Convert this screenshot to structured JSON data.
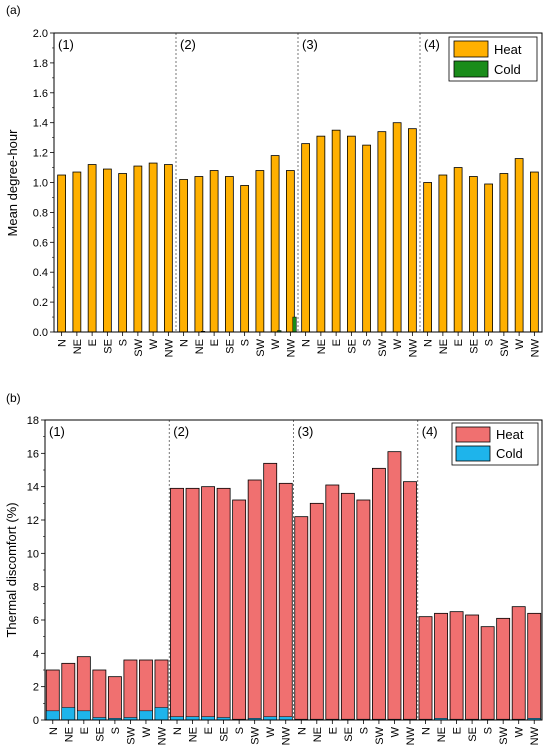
{
  "colors": {
    "heat_a": "#FFB000",
    "cold_a": "#1A8C1A",
    "heat_b": "#F07070",
    "cold_b": "#1EB4EB"
  },
  "chart_data": [
    {
      "type": "bar",
      "panel_label": "(a)",
      "ylabel": "Mean degree-hour",
      "ylim": [
        0,
        2.0
      ],
      "yticks": [
        0.0,
        0.2,
        0.4,
        0.6,
        0.8,
        1.0,
        1.2,
        1.4,
        1.6,
        1.8,
        2.0
      ],
      "ytick_labels": [
        "0.0",
        "0.2",
        "0.4",
        "0.6",
        "0.8",
        "1.0",
        "1.2",
        "1.4",
        "1.6",
        "1.8",
        "2.0"
      ],
      "groups": [
        "(1)",
        "(2)",
        "(3)",
        "(4)"
      ],
      "categories": [
        "N",
        "NE",
        "E",
        "SE",
        "S",
        "SW",
        "W",
        "NW"
      ],
      "legend_position": "top-right",
      "series": [
        {
          "name": "Heat",
          "values": [
            [
              1.05,
              1.07,
              1.12,
              1.09,
              1.06,
              1.11,
              1.13,
              1.12
            ],
            [
              1.02,
              1.04,
              1.08,
              1.04,
              0.98,
              1.08,
              1.18,
              1.08
            ],
            [
              1.26,
              1.31,
              1.35,
              1.31,
              1.25,
              1.34,
              1.4,
              1.36
            ],
            [
              1.0,
              1.05,
              1.1,
              1.04,
              0.99,
              1.06,
              1.16,
              1.07
            ]
          ]
        },
        {
          "name": "Cold",
          "values": [
            [
              0,
              0,
              0,
              0,
              0,
              0,
              0,
              0
            ],
            [
              0,
              0.005,
              0,
              0,
              0,
              0,
              0.01,
              0.1
            ],
            [
              0,
              0,
              0,
              0,
              0,
              0,
              0,
              0
            ],
            [
              0,
              0,
              0,
              0,
              0,
              0,
              0,
              0
            ]
          ]
        }
      ]
    },
    {
      "type": "bar",
      "panel_label": "(b)",
      "ylabel": "Thermal discomfort (%)",
      "ylim": [
        0,
        18
      ],
      "yticks": [
        0,
        2,
        4,
        6,
        8,
        10,
        12,
        14,
        16,
        18
      ],
      "ytick_labels": [
        "0",
        "2",
        "4",
        "6",
        "8",
        "10",
        "12",
        "14",
        "16",
        "18"
      ],
      "groups": [
        "(1)",
        "(2)",
        "(3)",
        "(4)"
      ],
      "categories": [
        "N",
        "NE",
        "E",
        "SE",
        "S",
        "SW",
        "W",
        "NW"
      ],
      "legend_position": "top-right",
      "stacked": true,
      "series": [
        {
          "name": "Heat",
          "values": [
            [
              3.0,
              3.4,
              3.8,
              3.0,
              2.6,
              3.6,
              3.6,
              3.6
            ],
            [
              13.9,
              13.9,
              14.0,
              13.9,
              13.2,
              14.4,
              15.4,
              14.2
            ],
            [
              12.2,
              13.0,
              14.1,
              13.6,
              13.2,
              15.1,
              16.1,
              14.3
            ],
            [
              6.2,
              6.4,
              6.5,
              6.3,
              5.6,
              6.1,
              6.8,
              6.4
            ]
          ]
        },
        {
          "name": "Cold",
          "values": [
            [
              0.55,
              0.75,
              0.55,
              0.15,
              0.1,
              0.15,
              0.55,
              0.75
            ],
            [
              0.2,
              0.2,
              0.2,
              0.15,
              0.05,
              0.1,
              0.2,
              0.2
            ],
            [
              0.05,
              0.05,
              0.05,
              0.05,
              0.05,
              0.05,
              0.05,
              0.05
            ],
            [
              0.05,
              0.1,
              0.05,
              0.05,
              0.05,
              0.05,
              0.05,
              0.1
            ]
          ]
        }
      ]
    }
  ]
}
